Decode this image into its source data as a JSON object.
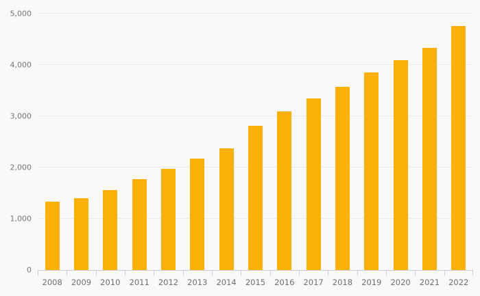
{
  "colors": {
    "background": "#f9f9f9",
    "bar": "#FAB005",
    "gridline": "#e9e9e9",
    "axis_line": "#c6cddb",
    "tick_mark": "#c6cddb",
    "y_label": "#757575",
    "x_label": "#6e6e6e"
  },
  "chart_data": {
    "type": "bar",
    "title": "",
    "xlabel": "",
    "ylabel": "",
    "categories": [
      "2008",
      "2009",
      "2010",
      "2011",
      "2012",
      "2013",
      "2014",
      "2015",
      "2016",
      "2017",
      "2018",
      "2019",
      "2020",
      "2021",
      "2022"
    ],
    "values": [
      1330,
      1400,
      1560,
      1780,
      1980,
      2180,
      2370,
      2820,
      3100,
      3350,
      3580,
      3860,
      4090,
      4340,
      4760
    ],
    "ylim": [
      0,
      5000
    ],
    "yticks": [
      {
        "value": 0,
        "label": "0"
      },
      {
        "value": 1000,
        "label": "1,000"
      },
      {
        "value": 2000,
        "label": "2,000"
      },
      {
        "value": 3000,
        "label": "3,000"
      },
      {
        "value": 4000,
        "label": "4,000"
      },
      {
        "value": 5000,
        "label": "5,000"
      }
    ],
    "grid": "horizontal",
    "legend": "none",
    "bar_color": "#FAB005"
  }
}
